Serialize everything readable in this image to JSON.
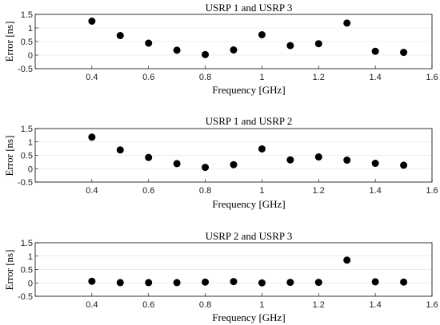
{
  "chart_data": [
    {
      "type": "scatter",
      "title": "USRP 1 and USRP 3",
      "xlabel": "Frequency [GHz]",
      "ylabel": "Error [ns]",
      "xlim": [
        0.2,
        1.6
      ],
      "ylim": [
        -0.5,
        1.5
      ],
      "xticks": [
        "0.4",
        "0.6",
        "0.8",
        "1",
        "1.2",
        "1.4",
        "1.6"
      ],
      "yticks": [
        "-0.5",
        "0",
        "0.5",
        "1",
        "1.5"
      ],
      "grid": "y-major",
      "x": [
        0.4,
        0.5,
        0.6,
        0.7,
        0.8,
        0.9,
        1.0,
        1.1,
        1.2,
        1.3,
        1.4,
        1.5
      ],
      "y": [
        1.25,
        0.72,
        0.44,
        0.18,
        0.02,
        0.19,
        0.75,
        0.35,
        0.42,
        1.18,
        0.14,
        0.1
      ]
    },
    {
      "type": "scatter",
      "title": "USRP 1 and USRP 2",
      "xlabel": "Frequency [GHz]",
      "ylabel": "Error [ns]",
      "xlim": [
        0.2,
        1.6
      ],
      "ylim": [
        -0.5,
        1.5
      ],
      "xticks": [
        "0.4",
        "0.6",
        "0.8",
        "1",
        "1.2",
        "1.4",
        "1.6"
      ],
      "yticks": [
        "-0.5",
        "0",
        "0.5",
        "1",
        "1.5"
      ],
      "grid": "y-major",
      "x": [
        0.4,
        0.5,
        0.6,
        0.7,
        0.8,
        0.9,
        1.0,
        1.1,
        1.2,
        1.3,
        1.4,
        1.5
      ],
      "y": [
        1.18,
        0.7,
        0.42,
        0.19,
        0.05,
        0.15,
        0.74,
        0.33,
        0.44,
        0.32,
        0.2,
        0.13
      ]
    },
    {
      "type": "scatter",
      "title": "USRP 2 and USRP 3",
      "xlabel": "Frequency [GHz]",
      "ylabel": "Error [ns]",
      "xlim": [
        0.2,
        1.6
      ],
      "ylim": [
        -0.5,
        1.5
      ],
      "xticks": [
        "0.4",
        "0.6",
        "0.8",
        "1",
        "1.2",
        "1.4",
        "1.6"
      ],
      "yticks": [
        "-0.5",
        "0",
        "0.5",
        "1",
        "1.5"
      ],
      "grid": "y-major",
      "x": [
        0.4,
        0.5,
        0.6,
        0.7,
        0.8,
        0.9,
        1.0,
        1.1,
        1.2,
        1.3,
        1.4,
        1.5
      ],
      "y": [
        0.06,
        0.01,
        0.01,
        0.01,
        0.03,
        0.05,
        0.0,
        0.02,
        0.02,
        0.85,
        0.04,
        0.03
      ]
    }
  ]
}
